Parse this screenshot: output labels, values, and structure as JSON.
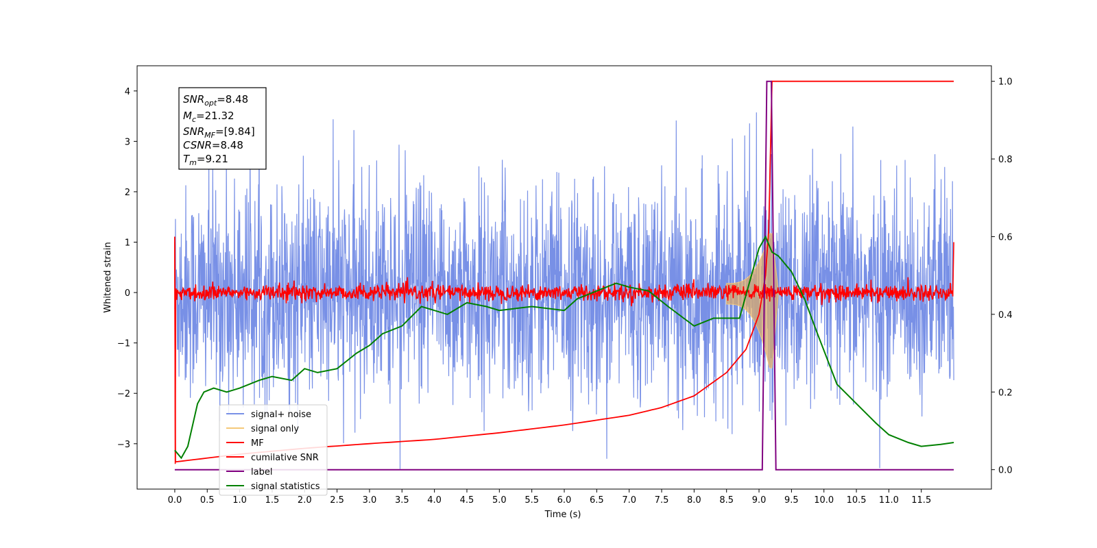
{
  "chart_data": {
    "type": "line",
    "xlabel": "Time (s)",
    "ylabel": "Whitened strain",
    "xlim": [
      -0.58,
      12.58
    ],
    "ylim_left": [
      -3.9,
      4.5
    ],
    "ylim_right": [
      -0.05,
      1.04
    ],
    "x_ticks": [
      "0.0",
      "0.5",
      "1.0",
      "1.5",
      "2.0",
      "2.5",
      "3.0",
      "3.5",
      "4.0",
      "4.5",
      "5.0",
      "5.5",
      "6.0",
      "6.5",
      "7.0",
      "7.5",
      "8.0",
      "8.5",
      "9.0",
      "9.5",
      "10.0",
      "10.5",
      "11.0",
      "11.5"
    ],
    "y_ticks_left": [
      "−3",
      "−2",
      "−1",
      "0",
      "1",
      "2",
      "3",
      "4"
    ],
    "y_ticks_right": [
      "0.0",
      "0.2",
      "0.4",
      "0.6",
      "0.8",
      "1.0"
    ],
    "legend": {
      "placement": "lower-left",
      "entries": [
        {
          "label": "signal+ noise",
          "color": "#7890e6"
        },
        {
          "label": "signal only",
          "color": "#f5c878"
        },
        {
          "label": "MF",
          "color": "#ff0000"
        },
        {
          "label": "cumilative SNR",
          "color": "#ff0000"
        },
        {
          "label": "label",
          "color": "#800080"
        },
        {
          "label": "signal statistics",
          "color": "#008000"
        }
      ]
    },
    "info_box": {
      "snr_opt": {
        "base": "SNR",
        "sub": "opt",
        "value": "=8.48"
      },
      "mc": {
        "base": "M",
        "sub": "c",
        "value": "=21.32"
      },
      "snr_mf": {
        "base": "SNR",
        "sub": "MF",
        "value": "=[9.84]"
      },
      "csnr": {
        "base": "CSNR",
        "value": "=8.48"
      },
      "tm": {
        "base": "T",
        "sub": "m",
        "value": "=9.21"
      }
    },
    "series": [
      {
        "name": "signal+ noise",
        "axis": "left",
        "description_range": [
          -3.5,
          4.2
        ],
        "x_range": [
          0,
          12
        ]
      },
      {
        "name": "signal only",
        "axis": "left",
        "x_range": [
          8.5,
          9.3
        ],
        "peak_amplitude": 1.3
      },
      {
        "name": "MF",
        "axis": "left",
        "x_range": [
          0,
          12
        ],
        "range": [
          -0.15,
          0.35
        ]
      },
      {
        "name": "cumilative SNR",
        "axis": "right",
        "x": [
          0.0,
          0.01,
          1.0,
          2.0,
          3.0,
          4.0,
          5.0,
          6.0,
          7.0,
          7.5,
          8.0,
          8.5,
          8.8,
          9.0,
          9.1,
          9.15,
          9.2,
          12.0
        ],
        "y": [
          0.6,
          0.02,
          0.04,
          0.055,
          0.067,
          0.078,
          0.095,
          0.115,
          0.14,
          0.16,
          0.19,
          0.25,
          0.31,
          0.4,
          0.5,
          0.62,
          1.0,
          1.0
        ]
      },
      {
        "name": "label",
        "axis": "right",
        "x": [
          0,
          9.05,
          9.12,
          9.19,
          9.26,
          12
        ],
        "y": [
          0,
          0,
          1,
          1,
          0,
          0
        ]
      },
      {
        "name": "signal statistics",
        "axis": "right",
        "x": [
          0.0,
          0.1,
          0.2,
          0.35,
          0.45,
          0.6,
          0.8,
          1.0,
          1.3,
          1.5,
          1.8,
          2.0,
          2.2,
          2.5,
          2.8,
          3.0,
          3.2,
          3.5,
          3.8,
          4.0,
          4.2,
          4.5,
          4.8,
          5.0,
          5.5,
          6.0,
          6.2,
          6.5,
          6.8,
          7.0,
          7.3,
          7.6,
          8.0,
          8.3,
          8.7,
          9.0,
          9.1,
          9.2,
          9.3,
          9.5,
          9.7,
          9.9,
          10.2,
          10.5,
          10.8,
          11.0,
          11.3,
          11.5,
          11.8,
          12.0
        ],
        "y": [
          0.05,
          0.03,
          0.06,
          0.17,
          0.2,
          0.21,
          0.2,
          0.21,
          0.23,
          0.24,
          0.23,
          0.26,
          0.25,
          0.26,
          0.3,
          0.32,
          0.35,
          0.37,
          0.42,
          0.41,
          0.4,
          0.43,
          0.42,
          0.41,
          0.42,
          0.41,
          0.44,
          0.46,
          0.48,
          0.47,
          0.46,
          0.42,
          0.37,
          0.39,
          0.39,
          0.57,
          0.6,
          0.56,
          0.55,
          0.51,
          0.44,
          0.35,
          0.22,
          0.17,
          0.12,
          0.09,
          0.07,
          0.06,
          0.065,
          0.07
        ]
      }
    ]
  }
}
